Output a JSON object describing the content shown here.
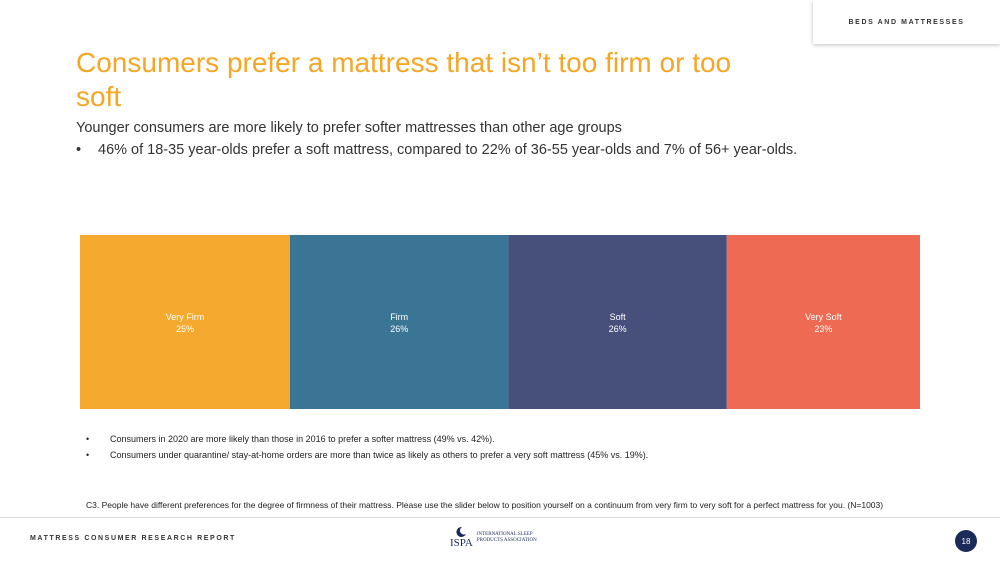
{
  "header": {
    "section_label": "BEDS AND MATTRESSES"
  },
  "title": "Consumers prefer a mattress that isn’t too firm or too soft",
  "subtitle": "Younger consumers are more likely to prefer softer mattresses than other age groups",
  "subtitle_bullet": "46% of 18-35 year-olds prefer a soft mattress, compared to  22% of 36-55 year-olds and 7% of 56+ year-olds.",
  "bullet_glyph": "•",
  "notes": [
    "Consumers in 2020 are more likely than those in 2016 to prefer a softer mattress (49% vs. 42%).",
    "Consumers under quarantine/ stay-at-home orders are more than twice as likely as others to prefer a very soft mattress (45% vs. 19%)."
  ],
  "footnote": "C3. People have different preferences for the degree of firmness of their mattress.  Please use the slider below to position yourself on a continuum from very firm to very soft for a perfect mattress for you. (N=1003)",
  "footer": {
    "report_label": "MATTRESS CONSUMER RESEARCH REPORT",
    "logo_abbr": "ISPA",
    "logo_name": "International Sleep Products Association",
    "page_number": "18"
  },
  "chart_data": {
    "type": "bar",
    "orientation": "horizontal-stacked-100",
    "categories": [
      "Very Firm",
      "Firm",
      "Soft",
      "Very Soft"
    ],
    "values": [
      25,
      26,
      26,
      23
    ],
    "value_labels": [
      "25%",
      "26%",
      "26%",
      "23%"
    ],
    "colors": [
      "#f5a92e",
      "#3a7596",
      "#47507a",
      "#ee6a52"
    ]
  }
}
